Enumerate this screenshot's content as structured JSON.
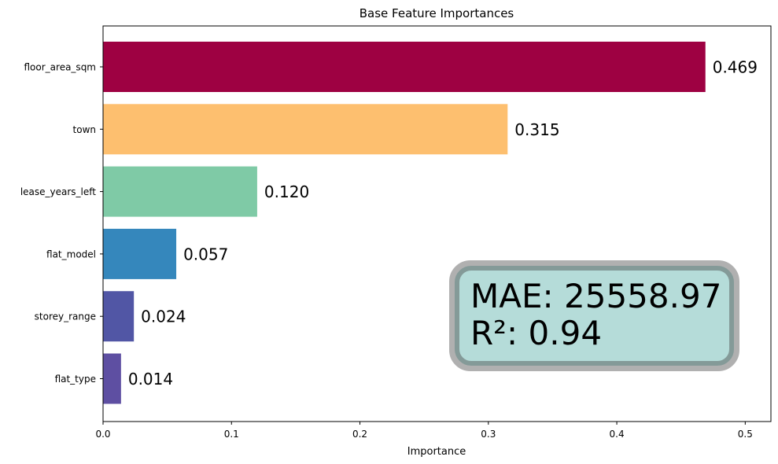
{
  "chart_data": {
    "type": "bar",
    "orientation": "horizontal",
    "title": "Base Feature Importances",
    "xlabel": "Importance",
    "ylabel": "",
    "xlim": [
      0,
      0.52
    ],
    "xticks": [
      "0.0",
      "0.1",
      "0.2",
      "0.3",
      "0.4",
      "0.5"
    ],
    "xtick_values": [
      0,
      0.1,
      0.2,
      0.3,
      0.4,
      0.5
    ],
    "categories": [
      "floor_area_sqm",
      "town",
      "lease_years_left",
      "flat_model",
      "storey_range",
      "flat_type"
    ],
    "values": [
      0.469,
      0.315,
      0.12,
      0.057,
      0.024,
      0.014
    ],
    "data_labels": [
      "0.469",
      "0.315",
      "0.120",
      "0.057",
      "0.024",
      "0.014"
    ],
    "colors": [
      "#9e0142",
      "#fdbf6f",
      "#7fcaa6",
      "#3587bc",
      "#5156a5",
      "#5e4fa2"
    ],
    "grid": false,
    "annotation": {
      "lines": [
        "MAE: 25558.97",
        "R²: 0.94"
      ],
      "background": "#b5dcd9",
      "inner_border": "#849a98",
      "outer_border": "#b0b0b0"
    }
  }
}
